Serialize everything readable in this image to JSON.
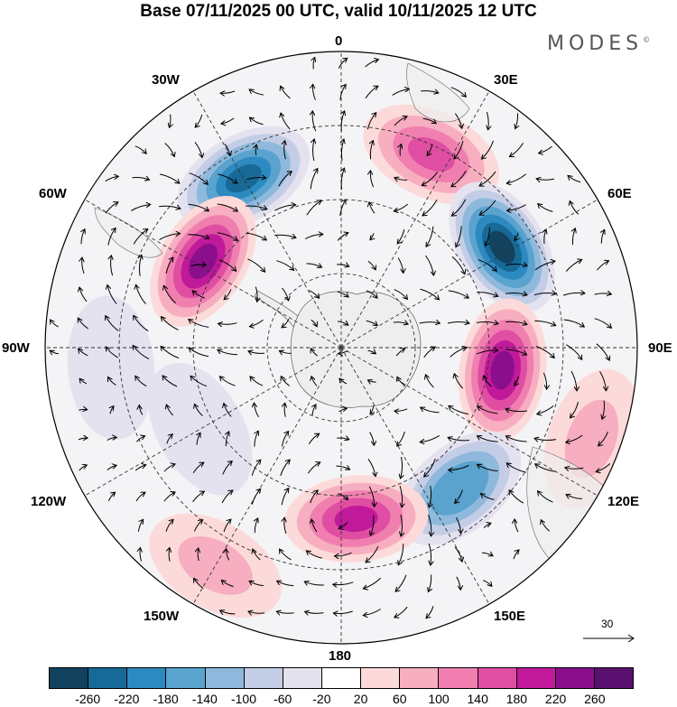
{
  "title": "Base 07/11/2025 00 UTC, valid 10/11/2025 12 UTC",
  "brand": {
    "name": "MODES",
    "mark": "©"
  },
  "lon_labels": {
    "top": "0",
    "bottom": "180",
    "e30": "30E",
    "e60": "60E",
    "e90": "90E",
    "e120": "120E",
    "e150": "150E",
    "w30": "30W",
    "w60": "60W",
    "w90": "90W",
    "w120": "120W",
    "w150": "150W"
  },
  "reference_vector": {
    "value": "30"
  },
  "colorbar": {
    "colors": [
      "#12425d",
      "#176a97",
      "#2d8ac0",
      "#5aa3cf",
      "#8fb9dc",
      "#c3cde6",
      "#e5e2f0",
      "#ffffff",
      "#fcdad9",
      "#f7aec0",
      "#f07fb0",
      "#df4ea3",
      "#c0199a",
      "#8b0f8c",
      "#5a106e"
    ],
    "ticks": [
      "-260",
      "-220",
      "-180",
      "-140",
      "-100",
      "-60",
      "-20",
      "20",
      "60",
      "100",
      "140",
      "180",
      "220",
      "260"
    ]
  },
  "anomalies": [
    {
      "lon": 25,
      "r": 0.72,
      "value": 160
    },
    {
      "lon": -30,
      "r": 0.66,
      "value": -240
    },
    {
      "lon": -58,
      "r": 0.55,
      "value": 250
    },
    {
      "lon": 58,
      "r": 0.64,
      "value": -270
    },
    {
      "lon": 98,
      "r": 0.55,
      "value": 250
    },
    {
      "lon": 140,
      "r": 0.62,
      "value": -180
    },
    {
      "lon": 175,
      "r": 0.58,
      "value": 200
    },
    {
      "lon": -120,
      "r": 0.55,
      "value": -60
    },
    {
      "lon": -95,
      "r": 0.78,
      "value": -60
    },
    {
      "lon": -150,
      "r": 0.85,
      "value": 80
    },
    {
      "lon": 110,
      "r": 0.9,
      "value": 80
    }
  ]
}
